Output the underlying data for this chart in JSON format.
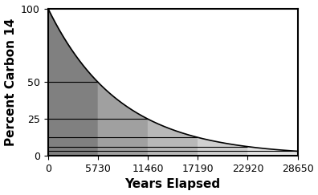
{
  "title": "",
  "xlabel": "Years Elapsed",
  "ylabel": "Percent Carbon 14",
  "half_life": 5730,
  "num_half_lives": 5,
  "x_ticks": [
    0,
    5730,
    11460,
    17190,
    22920,
    28650
  ],
  "y_ticks": [
    0,
    25,
    50,
    100
  ],
  "y_lim": [
    0,
    100
  ],
  "x_lim": [
    0,
    28650
  ],
  "decay_color": "#000000",
  "fill_colors": [
    "#808080",
    "#a0a0a0",
    "#b8b8b8",
    "#d0d0d0",
    "#e4e4e4"
  ],
  "hline_values": [
    50,
    25,
    12.5,
    6.25,
    3.125
  ],
  "hline_color": "#000000",
  "background_color": "#ffffff",
  "border_color": "#000000",
  "xlabel_fontsize": 11,
  "ylabel_fontsize": 11,
  "tick_fontsize": 9,
  "line_width": 1.2
}
